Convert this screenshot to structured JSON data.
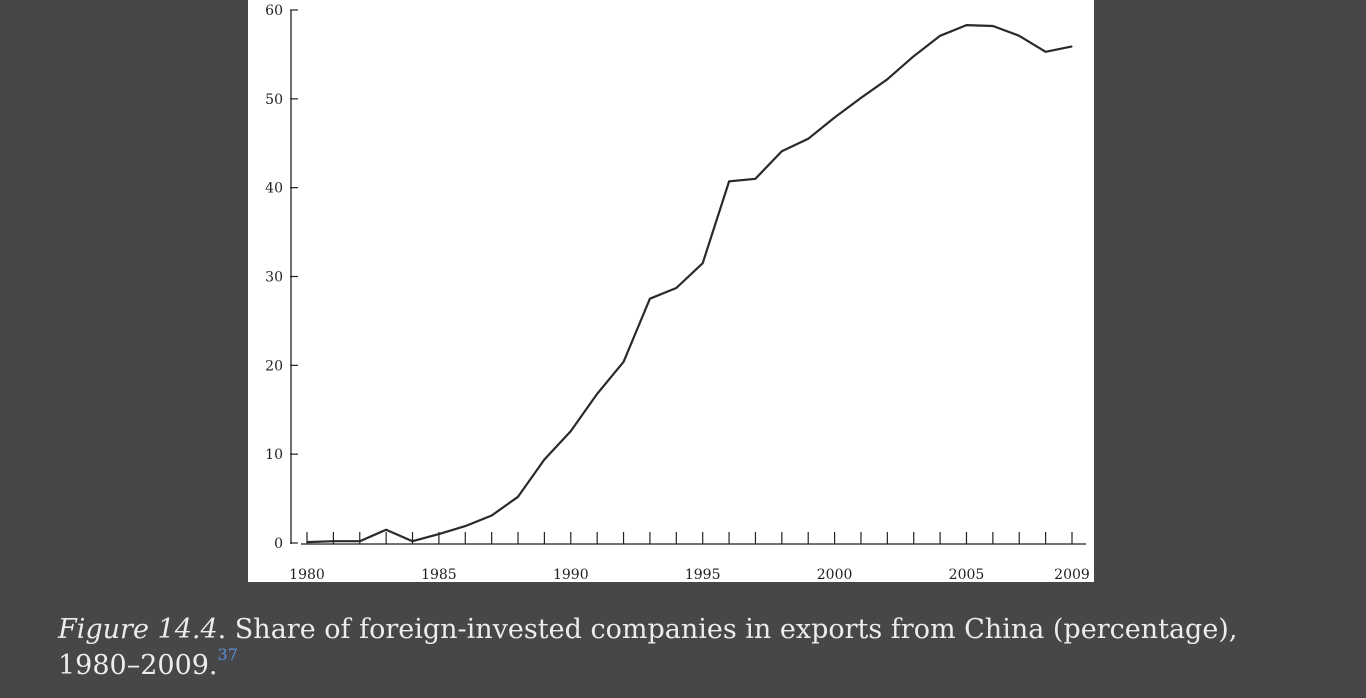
{
  "figure": {
    "caption_label": "Figure 14.4",
    "caption_text": ". Share of foreign-invested companies in exports from China (percentage), 1980–2009.",
    "footnote_ref": "37"
  },
  "chart_data": {
    "type": "line",
    "title": "",
    "xlabel": "",
    "ylabel": "",
    "xlim": [
      1980,
      2009
    ],
    "ylim": [
      0,
      60
    ],
    "grid": false,
    "x_tick_labels": [
      "1980",
      "1985",
      "1990",
      "1995",
      "2000",
      "2005",
      "2009"
    ],
    "y_tick_labels": [
      "0",
      "10",
      "20",
      "30",
      "40",
      "50",
      "60"
    ],
    "series": [
      {
        "x": [
          1980,
          1981,
          1982,
          1983,
          1984,
          1985,
          1986,
          1987,
          1988,
          1989,
          1990,
          1991,
          1992,
          1993,
          1994,
          1995,
          1996,
          1997,
          1998,
          1999,
          2000,
          2001,
          2002,
          2003,
          2004,
          2005,
          2006,
          2007,
          2008,
          2009
        ],
        "values": [
          0.1,
          0.2,
          0.2,
          1.5,
          0.2,
          1.0,
          1.9,
          3.1,
          5.2,
          9.4,
          12.6,
          16.8,
          20.4,
          27.5,
          28.7,
          31.5,
          40.7,
          41.0,
          44.1,
          45.5,
          47.9,
          50.1,
          52.2,
          54.8,
          57.1,
          58.3,
          58.2,
          57.1,
          55.3,
          55.9
        ]
      }
    ]
  }
}
